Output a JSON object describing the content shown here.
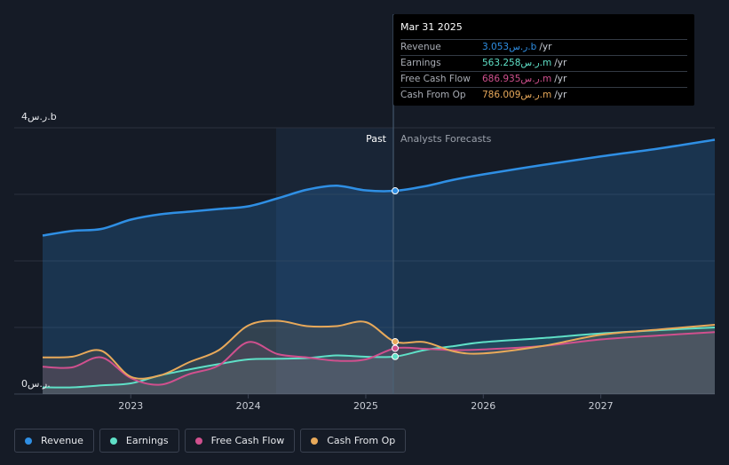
{
  "chart_data": {
    "type": "area",
    "x_start": 2022.25,
    "x_end": 2027.97,
    "divider_x": 2025.25,
    "ylim": [
      0,
      4
    ],
    "y_tick_labels": [
      "4ر.س.b",
      "0ر.س."
    ],
    "x_ticks": [
      {
        "x": 2023,
        "label": "2023"
      },
      {
        "x": 2024,
        "label": "2024"
      },
      {
        "x": 2025,
        "label": "2025"
      },
      {
        "x": 2026,
        "label": "2026"
      },
      {
        "x": 2027,
        "label": "2027"
      }
    ],
    "past_label": "Past",
    "forecast_label": "Analysts Forecasts",
    "series": [
      {
        "name": "Revenue",
        "color": "#2f8fe4",
        "x": [
          2022.25,
          2022.5,
          2022.75,
          2023.0,
          2023.25,
          2023.5,
          2023.75,
          2024.0,
          2024.25,
          2024.5,
          2024.75,
          2025.0,
          2025.25,
          2025.5,
          2025.75,
          2026.0,
          2026.5,
          2027.0,
          2027.5,
          2027.97
        ],
        "y": [
          2.38,
          2.45,
          2.48,
          2.62,
          2.7,
          2.74,
          2.78,
          2.82,
          2.94,
          3.07,
          3.13,
          3.06,
          3.053,
          3.12,
          3.22,
          3.3,
          3.44,
          3.57,
          3.69,
          3.82
        ]
      },
      {
        "name": "Earnings",
        "color": "#5fe0c7",
        "x": [
          2022.25,
          2022.5,
          2022.75,
          2023.0,
          2023.25,
          2023.5,
          2023.75,
          2024.0,
          2024.25,
          2024.5,
          2024.75,
          2025.0,
          2025.25,
          2025.5,
          2025.75,
          2026.0,
          2026.5,
          2027.0,
          2027.5,
          2027.97
        ],
        "y": [
          0.1,
          0.1,
          0.13,
          0.16,
          0.28,
          0.37,
          0.45,
          0.52,
          0.53,
          0.54,
          0.58,
          0.56,
          0.563,
          0.66,
          0.72,
          0.78,
          0.84,
          0.91,
          0.96,
          1.0
        ]
      },
      {
        "name": "Free Cash Flow",
        "color": "#d0508e",
        "x": [
          2022.25,
          2022.5,
          2022.75,
          2023.0,
          2023.25,
          2023.5,
          2023.75,
          2024.0,
          2024.25,
          2024.5,
          2024.75,
          2025.0,
          2025.25,
          2025.5,
          2025.75,
          2026.0,
          2026.5,
          2027.0,
          2027.5,
          2027.97
        ],
        "y": [
          0.41,
          0.4,
          0.55,
          0.24,
          0.14,
          0.3,
          0.43,
          0.78,
          0.6,
          0.55,
          0.5,
          0.52,
          0.687,
          0.68,
          0.66,
          0.67,
          0.72,
          0.82,
          0.88,
          0.93
        ]
      },
      {
        "name": "Cash From Op",
        "color": "#e8a95a",
        "x": [
          2022.25,
          2022.5,
          2022.75,
          2023.0,
          2023.25,
          2023.5,
          2023.75,
          2024.0,
          2024.25,
          2024.5,
          2024.75,
          2025.0,
          2025.25,
          2025.5,
          2025.75,
          2026.0,
          2026.5,
          2027.0,
          2027.5,
          2027.97
        ],
        "y": [
          0.55,
          0.56,
          0.65,
          0.26,
          0.28,
          0.48,
          0.66,
          1.03,
          1.1,
          1.02,
          1.02,
          1.08,
          0.786,
          0.78,
          0.64,
          0.61,
          0.72,
          0.89,
          0.97,
          1.04
        ]
      }
    ]
  },
  "tooltip": {
    "date": "Mar 31 2025",
    "rows": [
      {
        "label": "Revenue",
        "value": "3.053ر.س.b",
        "unit": "/yr",
        "color": "#2f8fe4"
      },
      {
        "label": "Earnings",
        "value": "563.258ر.س.m",
        "unit": "/yr",
        "color": "#5fe0c7"
      },
      {
        "label": "Free Cash Flow",
        "value": "686.935ر.س.m",
        "unit": "/yr",
        "color": "#d0508e"
      },
      {
        "label": "Cash From Op",
        "value": "786.009ر.س.m",
        "unit": "/yr",
        "color": "#e8a95a"
      }
    ]
  },
  "legend": [
    {
      "label": "Revenue",
      "color": "#2f8fe4"
    },
    {
      "label": "Earnings",
      "color": "#5fe0c7"
    },
    {
      "label": "Free Cash Flow",
      "color": "#d0508e"
    },
    {
      "label": "Cash From Op",
      "color": "#e8a95a"
    }
  ]
}
